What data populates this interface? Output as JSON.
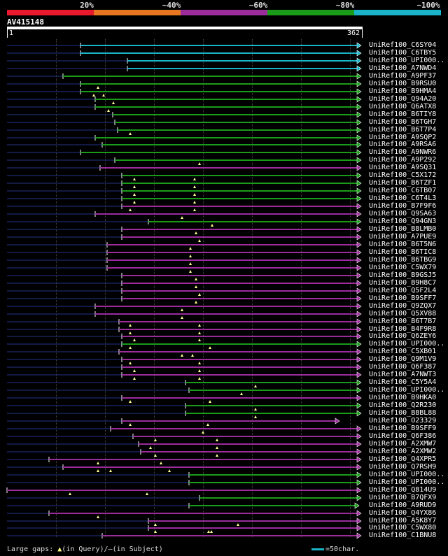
{
  "legend": {
    "labels": [
      "20%",
      "~40%",
      "~60%",
      "~80%",
      "~100%"
    ],
    "colors": [
      "#e8192c",
      "#e87722",
      "#9b2c9b",
      "#1a9c1a",
      "#1ab4c8"
    ]
  },
  "query": {
    "id": "AV415148",
    "start": "1",
    "end": "362",
    "length": 362
  },
  "footer": {
    "large_gaps": "Large gaps:",
    "query_gap_symbol": "▲",
    "query_gap_text": "(in Query)/",
    "subject_gap_symbol": "–",
    "subject_gap_text": "(in Subject)",
    "scale_text": "=50char."
  },
  "hits": [
    {
      "name": "UniRef100_C6SY04",
      "color": "#1ab4c8",
      "start": 115,
      "marks": []
    },
    {
      "name": "UniRef100_C6TBY5",
      "color": "#1ab4c8",
      "start": 115,
      "marks": []
    },
    {
      "name": "UniRef100_UPI000..",
      "color": "#1ab4c8",
      "start": 182,
      "marks": []
    },
    {
      "name": "UniRef100_A7NWD4",
      "color": "#1ab4c8",
      "start": 182,
      "marks": []
    },
    {
      "name": "UniRef100_A9PF37",
      "color": "#1a9c1a",
      "start": 90,
      "marks": []
    },
    {
      "name": "UniRef100_B9RSU0",
      "color": "#1a9c1a",
      "start": 115,
      "marks": [
        140
      ]
    },
    {
      "name": "UniRef100_B9HMA4",
      "color": "#1a9c1a",
      "start": 115,
      "marks": [
        134,
        148
      ]
    },
    {
      "name": "UniRef100_Q94A20",
      "color": "#1a9c1a",
      "start": 136,
      "marks": [
        162
      ]
    },
    {
      "name": "UniRef100_Q6ATX8",
      "color": "#1a9c1a",
      "start": 136,
      "marks": [
        155
      ]
    },
    {
      "name": "UniRef100_B6TIY8",
      "color": "#1a9c1a",
      "start": 161,
      "marks": []
    },
    {
      "name": "UniRef100_B6TGH7",
      "color": "#1a9c1a",
      "start": 164,
      "marks": []
    },
    {
      "name": "UniRef100_B6T7P4",
      "color": "#1a9c1a",
      "start": 168,
      "marks": [
        186
      ]
    },
    {
      "name": "UniRef100_A9SQP2",
      "color": "#1a9c1a",
      "start": 136,
      "marks": []
    },
    {
      "name": "UniRef100_A9RSA6",
      "color": "#1a9c1a",
      "start": 146,
      "marks": []
    },
    {
      "name": "UniRef100_A9NWR6",
      "color": "#1a9c1a",
      "start": 115,
      "marks": []
    },
    {
      "name": "UniRef100_A9P292",
      "color": "#1a9c1a",
      "start": 164,
      "marks": [
        285
      ]
    },
    {
      "name": "UniRef100_A9SQ31",
      "color": "#9b2c9b",
      "start": 143,
      "marks": []
    },
    {
      "name": "UniRef100_C5X172",
      "color": "#1a9c1a",
      "start": 174,
      "marks": [
        192,
        278
      ]
    },
    {
      "name": "UniRef100_B6TZF1",
      "color": "#1a9c1a",
      "start": 174,
      "marks": [
        192,
        278
      ]
    },
    {
      "name": "UniRef100_C6TB07",
      "color": "#1a9c1a",
      "start": 174,
      "marks": [
        192,
        278
      ]
    },
    {
      "name": "UniRef100_C6T4L3",
      "color": "#1a9c1a",
      "start": 174,
      "marks": [
        192,
        278
      ]
    },
    {
      "name": "UniRef100_B7F9F6",
      "color": "#9b2c9b",
      "start": 174,
      "marks": [
        186,
        278
      ]
    },
    {
      "name": "UniRef100_Q9SA63",
      "color": "#9b2c9b",
      "start": 136,
      "marks": [
        260
      ]
    },
    {
      "name": "UniRef100_Q94GN3",
      "color": "#1a9c1a",
      "start": 212,
      "marks": [
        303
      ]
    },
    {
      "name": "UniRef100_B8LMB0",
      "color": "#9b2c9b",
      "start": 174,
      "marks": [
        280
      ]
    },
    {
      "name": "UniRef100_A7PUE9",
      "color": "#9b2c9b",
      "start": 174,
      "marks": [
        285
      ]
    },
    {
      "name": "UniRef100_B6T5N6",
      "color": "#9b2c9b",
      "start": 153,
      "marks": [
        272
      ]
    },
    {
      "name": "UniRef100_B6TIC8",
      "color": "#9b2c9b",
      "start": 153,
      "marks": [
        272
      ]
    },
    {
      "name": "UniRef100_B6TBG9",
      "color": "#9b2c9b",
      "start": 153,
      "marks": [
        272
      ]
    },
    {
      "name": "UniRef100_C5WX79",
      "color": "#9b2c9b",
      "start": 153,
      "marks": [
        272
      ]
    },
    {
      "name": "UniRef100_B9GSJ5",
      "color": "#9b2c9b",
      "start": 174,
      "marks": [
        280
      ]
    },
    {
      "name": "UniRef100_B9H8C7",
      "color": "#9b2c9b",
      "start": 174,
      "marks": [
        280
      ]
    },
    {
      "name": "UniRef100_Q5F2L4",
      "color": "#9b2c9b",
      "start": 174,
      "marks": [
        285
      ]
    },
    {
      "name": "UniRef100_B9SFF7",
      "color": "#9b2c9b",
      "start": 174,
      "marks": [
        280
      ]
    },
    {
      "name": "UniRef100_Q9ZQX7",
      "color": "#9b2c9b",
      "start": 136,
      "marks": [
        260
      ]
    },
    {
      "name": "UniRef100_Q5XV88",
      "color": "#9b2c9b",
      "start": 136,
      "marks": [
        260
      ]
    },
    {
      "name": "UniRef100_B6T7B7",
      "color": "#9b2c9b",
      "start": 170,
      "marks": [
        186,
        285
      ]
    },
    {
      "name": "UniRef100_B4F9R8",
      "color": "#9b2c9b",
      "start": 170,
      "marks": [
        186,
        285
      ]
    },
    {
      "name": "UniRef100_Q6ZEY6",
      "color": "#9b2c9b",
      "start": 174,
      "marks": [
        192,
        285
      ]
    },
    {
      "name": "UniRef100_UPI000..",
      "color": "#1a9c1a",
      "start": 174,
      "marks": [
        186,
        300
      ]
    },
    {
      "name": "UniRef100_C5XB01",
      "color": "#9b2c9b",
      "start": 170,
      "marks": [
        260,
        275
      ]
    },
    {
      "name": "UniRef100_Q9M1V9",
      "color": "#9b2c9b",
      "start": 174,
      "marks": [
        186,
        285
      ]
    },
    {
      "name": "UniRef100_Q6F387",
      "color": "#9b2c9b",
      "start": 174,
      "marks": [
        192,
        285
      ]
    },
    {
      "name": "UniRef100_A7NWT3",
      "color": "#9b2c9b",
      "start": 174,
      "marks": [
        192,
        285
      ]
    },
    {
      "name": "UniRef100_C5Y5A4",
      "color": "#1a9c1a",
      "start": 265,
      "marks": [
        365
      ]
    },
    {
      "name": "UniRef100_UPI000..",
      "color": "#1a9c1a",
      "start": 270,
      "marks": [
        345
      ]
    },
    {
      "name": "UniRef100_B9HKA0",
      "color": "#9b2c9b",
      "start": 174,
      "marks": [
        186,
        300
      ]
    },
    {
      "name": "UniRef100_Q2R230",
      "color": "#1a9c1a",
      "start": 265,
      "marks": [
        365
      ]
    },
    {
      "name": "UniRef100_B8BL88",
      "color": "#1a9c1a",
      "start": 265,
      "marks": [
        365
      ]
    },
    {
      "name": "UniRef100_O23329",
      "color": "#9b2c9b",
      "start": 174,
      "marks": [
        186,
        297
      ],
      "endx": 484
    },
    {
      "name": "UniRef100_B9SFF9",
      "color": "#9b2c9b",
      "start": 158,
      "marks": [
        290
      ]
    },
    {
      "name": "UniRef100_Q6F386",
      "color": "#9b2c9b",
      "start": 190,
      "marks": [
        222,
        310
      ]
    },
    {
      "name": "UniRef100_A2XMW7",
      "color": "#9b2c9b",
      "start": 198,
      "marks": [
        215,
        310
      ]
    },
    {
      "name": "UniRef100_A2XMW2",
      "color": "#9b2c9b",
      "start": 201,
      "marks": [
        222,
        310
      ]
    },
    {
      "name": "UniRef100_Q4XPR5",
      "color": "#9b2c9b",
      "start": 70,
      "marks": [
        140,
        230
      ]
    },
    {
      "name": "UniRef100_Q7RSH9",
      "color": "#9b2c9b",
      "start": 90,
      "marks": [
        140,
        158,
        242
      ]
    },
    {
      "name": "UniRef100_UPI000..",
      "color": "#1a9c1a",
      "start": 270,
      "marks": []
    },
    {
      "name": "UniRef100_UPI000..",
      "color": "#1a9c1a",
      "start": 270,
      "marks": []
    },
    {
      "name": "UniRef100_Q814U9",
      "color": "#9b2c9b",
      "start": 10,
      "marks": [
        100,
        210
      ]
    },
    {
      "name": "UniRef100_B7QFX9",
      "color": "#1a9c1a",
      "start": 285,
      "marks": []
    },
    {
      "name": "UniRef100_A9RUD9",
      "color": "#1a9c1a",
      "start": 270,
      "marks": [],
      "endx": 512
    },
    {
      "name": "UniRef100_Q4YX86",
      "color": "#9b2c9b",
      "start": 70,
      "marks": [
        140
      ]
    },
    {
      "name": "UniRef100_A5K8Y7",
      "color": "#9b2c9b",
      "start": 212,
      "marks": [
        222,
        340
      ]
    },
    {
      "name": "UniRef100_C5WX80",
      "color": "#9b2c9b",
      "start": 212,
      "marks": [
        222,
        298,
        302
      ]
    },
    {
      "name": "UniRef100_C1BNU8",
      "color": "#9b2c9b",
      "start": 146,
      "marks": []
    }
  ]
}
